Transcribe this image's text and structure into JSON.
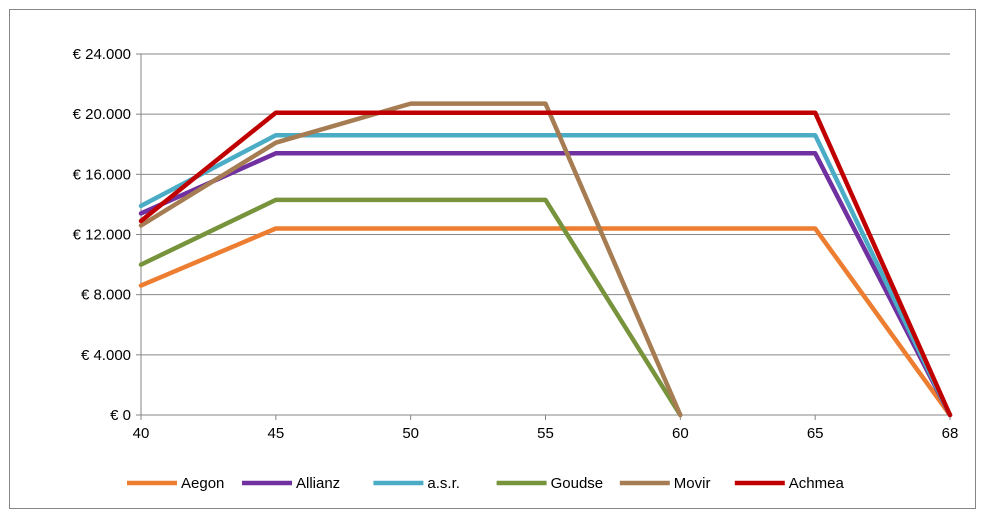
{
  "chart_data": {
    "type": "line",
    "title": "",
    "xlabel": "",
    "ylabel": "",
    "x": [
      40,
      45,
      50,
      55,
      60,
      65,
      68
    ],
    "x_tick_labels": [
      "40",
      "45",
      "50",
      "55",
      "60",
      "65",
      "68"
    ],
    "ylim": [
      0,
      24000
    ],
    "y_ticks": [
      0,
      4000,
      8000,
      12000,
      16000,
      20000,
      24000
    ],
    "y_tick_labels": [
      "€ 0",
      "€ 4.000",
      "€ 8.000",
      "€ 12.000",
      "€ 16.000",
      "€ 20.000",
      "€ 24.000"
    ],
    "grid": "horizontal",
    "legend_position": "bottom",
    "series": [
      {
        "name": "Aegon",
        "color": "#ED7D31",
        "points": [
          [
            40,
            8600
          ],
          [
            45,
            12400
          ],
          [
            50,
            12400
          ],
          [
            55,
            12400
          ],
          [
            60,
            12400
          ],
          [
            65,
            12400
          ],
          [
            68,
            0
          ]
        ]
      },
      {
        "name": "Allianz",
        "color": "#7030A0",
        "points": [
          [
            40,
            13400
          ],
          [
            45,
            17400
          ],
          [
            50,
            17400
          ],
          [
            55,
            17400
          ],
          [
            60,
            17400
          ],
          [
            65,
            17400
          ],
          [
            68,
            0
          ]
        ]
      },
      {
        "name": "a.s.r.",
        "color": "#4BACC6",
        "points": [
          [
            40,
            13900
          ],
          [
            45,
            18600
          ],
          [
            50,
            18600
          ],
          [
            55,
            18600
          ],
          [
            60,
            18600
          ],
          [
            65,
            18600
          ],
          [
            68,
            0
          ]
        ]
      },
      {
        "name": "Goudse",
        "color": "#77933C",
        "points": [
          [
            40,
            10000
          ],
          [
            45,
            14300
          ],
          [
            50,
            14300
          ],
          [
            55,
            14300
          ],
          [
            60,
            0
          ]
        ]
      },
      {
        "name": "Movir",
        "color": "#A67C52",
        "points": [
          [
            40,
            12600
          ],
          [
            45,
            18100
          ],
          [
            50,
            20700
          ],
          [
            55,
            20700
          ],
          [
            60,
            0
          ]
        ]
      },
      {
        "name": "Achmea",
        "color": "#C00000",
        "points": [
          [
            40,
            12900
          ],
          [
            45,
            20100
          ],
          [
            50,
            20100
          ],
          [
            55,
            20100
          ],
          [
            60,
            20100
          ],
          [
            65,
            20100
          ],
          [
            68,
            0
          ]
        ]
      }
    ]
  }
}
